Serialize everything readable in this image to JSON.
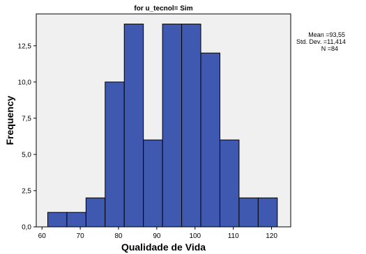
{
  "chart_data": {
    "type": "bar",
    "title": "for u_tecnol= Sim",
    "xlabel": "Qualidade de Vida",
    "ylabel": "Frequency",
    "bins": [
      {
        "start": 61.5,
        "end": 66.5,
        "value": 1
      },
      {
        "start": 66.5,
        "end": 71.5,
        "value": 1
      },
      {
        "start": 71.5,
        "end": 76.5,
        "value": 2
      },
      {
        "start": 76.5,
        "end": 81.5,
        "value": 10
      },
      {
        "start": 81.5,
        "end": 86.5,
        "value": 14
      },
      {
        "start": 86.5,
        "end": 91.5,
        "value": 6
      },
      {
        "start": 91.5,
        "end": 96.5,
        "value": 14
      },
      {
        "start": 96.5,
        "end": 101.5,
        "value": 14
      },
      {
        "start": 101.5,
        "end": 106.5,
        "value": 12
      },
      {
        "start": 106.5,
        "end": 111.5,
        "value": 6
      },
      {
        "start": 111.5,
        "end": 116.5,
        "value": 2
      },
      {
        "start": 116.5,
        "end": 121.5,
        "value": 2
      }
    ],
    "xlim": [
      58.5,
      125
    ],
    "ylim": [
      0,
      14.7
    ],
    "xticks": [
      60,
      70,
      80,
      90,
      100,
      110,
      120
    ],
    "xtick_labels": [
      "60",
      "70",
      "80",
      "90",
      "100",
      "110",
      "120"
    ],
    "yticks": [
      0,
      2.5,
      5,
      7.5,
      10,
      12.5
    ],
    "ytick_labels": [
      "0,0",
      "2,5",
      "5,0",
      "7,5",
      "10,0",
      "12,5"
    ],
    "bar_color": "#3f58b0",
    "plot_background": "#f0f0f0",
    "stats": {
      "mean": "Mean =93,55",
      "std": "Std. Dev. =11,414",
      "n": "N =84"
    }
  }
}
